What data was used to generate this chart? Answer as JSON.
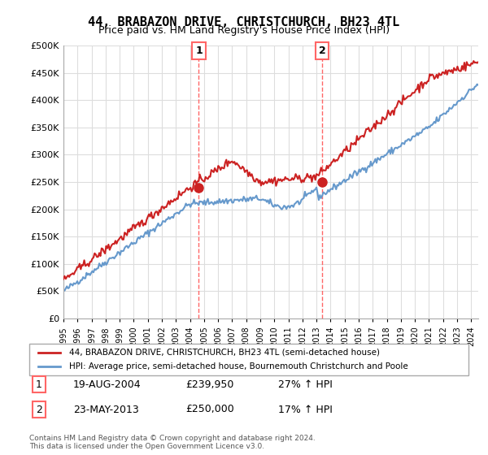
{
  "title": "44, BRABAZON DRIVE, CHRISTCHURCH, BH23 4TL",
  "subtitle": "Price paid vs. HM Land Registry's House Price Index (HPI)",
  "footer": "Contains HM Land Registry data © Crown copyright and database right 2024.\nThis data is licensed under the Open Government Licence v3.0.",
  "legend_line1": "44, BRABAZON DRIVE, CHRISTCHURCH, BH23 4TL (semi-detached house)",
  "legend_line2": "HPI: Average price, semi-detached house, Bournemouth Christchurch and Poole",
  "sale1_label": "1",
  "sale1_date": "19-AUG-2004",
  "sale1_price": "£239,950",
  "sale1_hpi": "27% ↑ HPI",
  "sale2_label": "2",
  "sale2_date": "23-MAY-2013",
  "sale2_price": "£250,000",
  "sale2_hpi": "17% ↑ HPI",
  "hpi_color": "#6699cc",
  "price_color": "#cc2222",
  "marker_color": "#cc2222",
  "vline_color": "#ff6666",
  "background_color": "#ffffff",
  "grid_color": "#dddddd",
  "ylim": [
    0,
    500000
  ],
  "yticks": [
    0,
    50000,
    100000,
    150000,
    200000,
    250000,
    300000,
    350000,
    400000,
    450000,
    500000
  ],
  "sale1_year": 2004.63,
  "sale2_year": 2013.39,
  "sale1_price_val": 239950,
  "sale2_price_val": 250000
}
